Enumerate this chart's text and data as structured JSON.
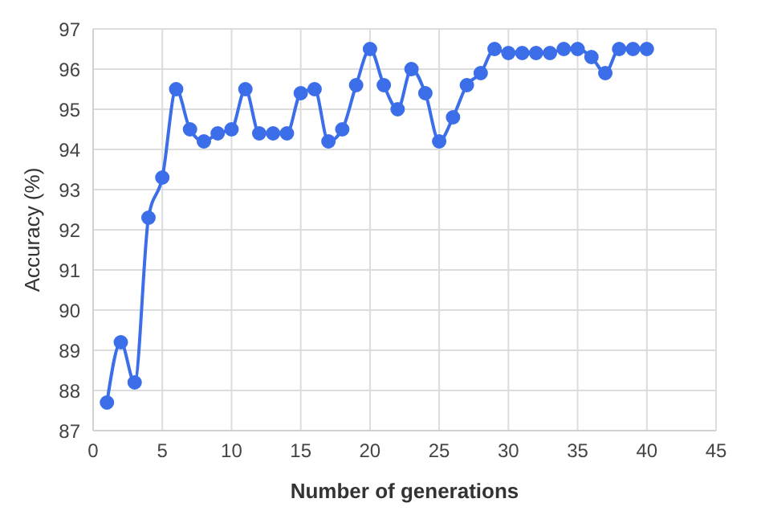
{
  "chart_data": {
    "type": "line",
    "xlabel": "Number of generations",
    "ylabel": "Accuracy (%)",
    "x": [
      1,
      2,
      3,
      4,
      5,
      6,
      7,
      8,
      9,
      10,
      11,
      12,
      13,
      14,
      15,
      16,
      17,
      18,
      19,
      20,
      21,
      22,
      23,
      24,
      25,
      26,
      27,
      28,
      29,
      30,
      31,
      32,
      33,
      34,
      35,
      36,
      37,
      38,
      39,
      40
    ],
    "series": [
      {
        "color": "#3b6ee8",
        "values": [
          87.7,
          89.2,
          88.2,
          92.3,
          93.3,
          95.5,
          94.5,
          94.2,
          94.4,
          94.5,
          95.5,
          94.4,
          94.4,
          94.4,
          95.4,
          95.5,
          94.2,
          94.5,
          95.6,
          96.5,
          95.6,
          95.0,
          96.0,
          95.4,
          94.2,
          94.8,
          95.6,
          95.9,
          96.5,
          96.4,
          96.4,
          96.4,
          96.4,
          96.5,
          96.5,
          96.3,
          95.9,
          96.5,
          96.5,
          96.5
        ]
      }
    ],
    "xlim": [
      0,
      45
    ],
    "xticks": [
      0,
      5,
      10,
      15,
      20,
      25,
      30,
      35,
      40,
      45
    ],
    "ylim": [
      87,
      97
    ],
    "yticks": [
      87,
      88,
      89,
      90,
      91,
      92,
      93,
      94,
      95,
      96,
      97
    ],
    "grid": true,
    "marker": "circle",
    "line_style": "solid",
    "legend": false
  }
}
